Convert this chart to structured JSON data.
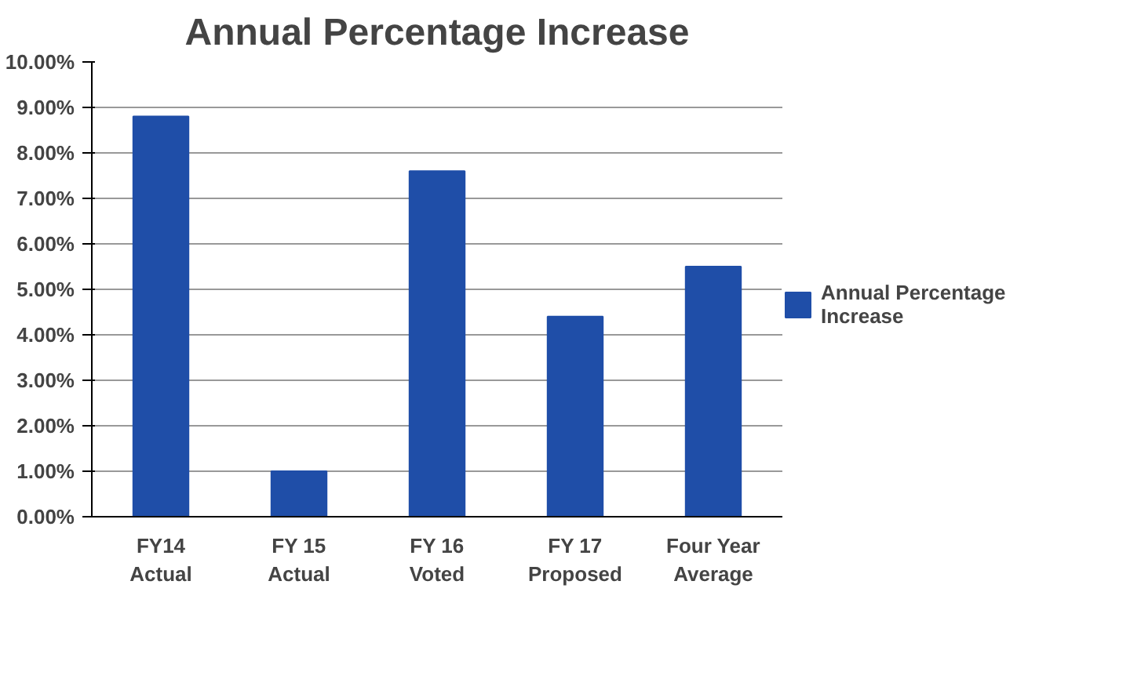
{
  "chart_data": {
    "type": "bar",
    "title": "Annual Percentage Increase",
    "categories": [
      "FY14\nActual",
      "FY 15\nActual",
      "FY 16\nVoted",
      "FY 17\nProposed",
      "Four Year\nAverage"
    ],
    "series": [
      {
        "name": "Annual Percentage Increase",
        "color": "#1f4ea8",
        "values": [
          8.8,
          1.0,
          7.6,
          4.4,
          5.5
        ]
      }
    ],
    "ylim": [
      0,
      10
    ],
    "yticks": [
      {
        "value": 0,
        "label": "0.00%"
      },
      {
        "value": 1,
        "label": "1.00%"
      },
      {
        "value": 2,
        "label": "2.00%"
      },
      {
        "value": 3,
        "label": "3.00%"
      },
      {
        "value": 4,
        "label": "4.00%"
      },
      {
        "value": 5,
        "label": "5.00%"
      },
      {
        "value": 6,
        "label": "6.00%"
      },
      {
        "value": 7,
        "label": "7.00%"
      },
      {
        "value": 8,
        "label": "8.00%"
      },
      {
        "value": 9,
        "label": "9.00%"
      },
      {
        "value": 10,
        "label": "10.00%"
      }
    ],
    "grid": "y",
    "legend": "right"
  }
}
